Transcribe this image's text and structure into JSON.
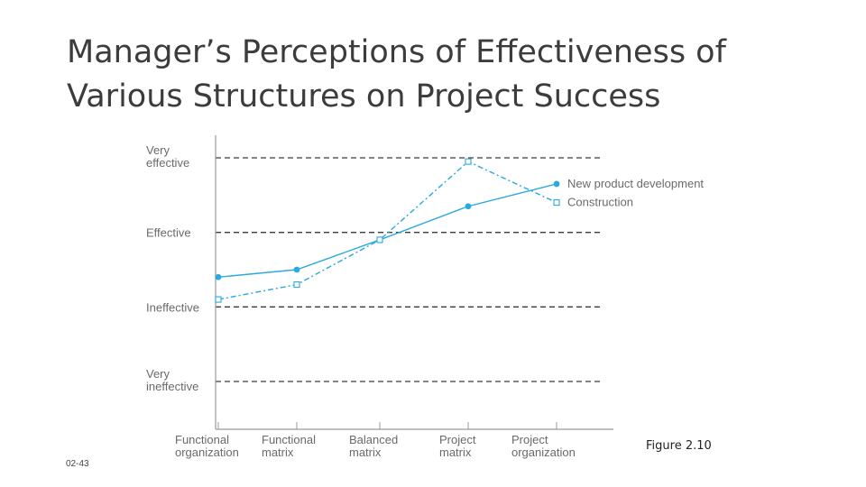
{
  "slide": {
    "title_line1": "Manager’s Perceptions of Effectiveness of",
    "title_line2": "Various Structures on Project Success",
    "figure_label": "Figure 2.10",
    "slide_number": "02-43"
  },
  "chart_data": {
    "type": "line",
    "categories": [
      [
        "Functional",
        "organization"
      ],
      [
        "Functional",
        "matrix"
      ],
      [
        "Balanced",
        "matrix"
      ],
      [
        "Project",
        "matrix"
      ],
      [
        "Project",
        "organization"
      ]
    ],
    "y_levels": [
      {
        "value": 4,
        "label": [
          "Very",
          "effective"
        ]
      },
      {
        "value": 3,
        "label": [
          "Effective"
        ]
      },
      {
        "value": 2,
        "label": [
          "Ineffective"
        ]
      },
      {
        "value": 1,
        "label": [
          "Very",
          "ineffective"
        ]
      }
    ],
    "ylim": [
      0.4,
      4.3
    ],
    "grid": "dashed horizontal at rating levels",
    "series": [
      {
        "name": "New product development",
        "marker": "filled-circle",
        "line": "solid",
        "values": [
          2.4,
          2.5,
          2.9,
          3.35,
          3.65
        ]
      },
      {
        "name": "Construction",
        "marker": "open-square",
        "line": "dash-dot",
        "values": [
          2.1,
          2.3,
          2.9,
          3.95,
          3.4
        ]
      }
    ],
    "colors": {
      "series": "#29a9df",
      "grid": "#3a3a3a",
      "axis": "#9a9a9a",
      "text": "#6a6a6a"
    }
  }
}
